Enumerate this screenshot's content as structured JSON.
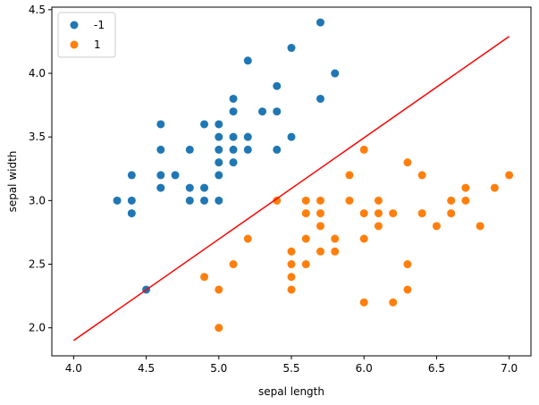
{
  "chart_data": {
    "type": "scatter",
    "xlabel": "sepal length",
    "ylabel": "sepal width",
    "xlim": [
      3.85,
      7.15
    ],
    "ylim": [
      1.78,
      4.52
    ],
    "xticks": [
      "4.0",
      "4.5",
      "5.0",
      "5.5",
      "6.0",
      "6.5",
      "7.0"
    ],
    "yticks": [
      "2.0",
      "2.5",
      "3.0",
      "3.5",
      "4.0",
      "4.5"
    ],
    "grid": false,
    "legend_position": "top-left",
    "series": [
      {
        "name": "-1",
        "color": "#1f77b4",
        "points": [
          [
            4.3,
            3.0
          ],
          [
            4.4,
            3.2
          ],
          [
            4.4,
            3.0
          ],
          [
            4.4,
            2.9
          ],
          [
            4.5,
            2.3
          ],
          [
            4.6,
            3.6
          ],
          [
            4.6,
            3.4
          ],
          [
            4.6,
            3.2
          ],
          [
            4.6,
            3.1
          ],
          [
            4.7,
            3.2
          ],
          [
            4.8,
            3.4
          ],
          [
            4.8,
            3.1
          ],
          [
            4.8,
            3.0
          ],
          [
            4.9,
            3.6
          ],
          [
            4.9,
            3.1
          ],
          [
            4.9,
            3.0
          ],
          [
            5.0,
            3.6
          ],
          [
            5.0,
            3.5
          ],
          [
            5.0,
            3.4
          ],
          [
            5.0,
            3.3
          ],
          [
            5.0,
            3.2
          ],
          [
            5.0,
            3.0
          ],
          [
            5.1,
            3.8
          ],
          [
            5.1,
            3.7
          ],
          [
            5.1,
            3.5
          ],
          [
            5.1,
            3.4
          ],
          [
            5.1,
            3.3
          ],
          [
            5.2,
            4.1
          ],
          [
            5.2,
            3.5
          ],
          [
            5.2,
            3.4
          ],
          [
            5.3,
            3.7
          ],
          [
            5.4,
            3.9
          ],
          [
            5.4,
            3.7
          ],
          [
            5.4,
            3.4
          ],
          [
            5.5,
            4.2
          ],
          [
            5.5,
            3.5
          ],
          [
            5.7,
            4.4
          ],
          [
            5.7,
            3.8
          ],
          [
            5.8,
            4.0
          ]
        ]
      },
      {
        "name": "1",
        "color": "#ff7f0e",
        "points": [
          [
            4.9,
            2.4
          ],
          [
            5.0,
            2.3
          ],
          [
            5.0,
            2.0
          ],
          [
            5.1,
            2.5
          ],
          [
            5.2,
            2.7
          ],
          [
            5.4,
            3.0
          ],
          [
            5.5,
            2.6
          ],
          [
            5.5,
            2.5
          ],
          [
            5.5,
            2.4
          ],
          [
            5.5,
            2.3
          ],
          [
            5.6,
            3.0
          ],
          [
            5.6,
            2.9
          ],
          [
            5.6,
            2.7
          ],
          [
            5.6,
            2.5
          ],
          [
            5.7,
            3.0
          ],
          [
            5.7,
            2.9
          ],
          [
            5.7,
            2.8
          ],
          [
            5.7,
            2.6
          ],
          [
            5.8,
            2.7
          ],
          [
            5.8,
            2.6
          ],
          [
            5.9,
            3.2
          ],
          [
            5.9,
            3.0
          ],
          [
            6.0,
            3.4
          ],
          [
            6.0,
            2.9
          ],
          [
            6.0,
            2.7
          ],
          [
            6.0,
            2.2
          ],
          [
            6.1,
            3.0
          ],
          [
            6.1,
            2.9
          ],
          [
            6.1,
            2.8
          ],
          [
            6.2,
            2.9
          ],
          [
            6.2,
            2.2
          ],
          [
            6.3,
            3.3
          ],
          [
            6.3,
            2.5
          ],
          [
            6.3,
            2.3
          ],
          [
            6.4,
            3.2
          ],
          [
            6.4,
            2.9
          ],
          [
            6.5,
            2.8
          ],
          [
            6.6,
            3.0
          ],
          [
            6.6,
            2.9
          ],
          [
            6.7,
            3.1
          ],
          [
            6.7,
            3.0
          ],
          [
            6.8,
            2.8
          ],
          [
            6.9,
            3.1
          ],
          [
            7.0,
            3.2
          ]
        ]
      }
    ],
    "line": {
      "color": "#ff0000",
      "points": [
        [
          4.0,
          1.9
        ],
        [
          7.0,
          4.29
        ]
      ]
    }
  }
}
